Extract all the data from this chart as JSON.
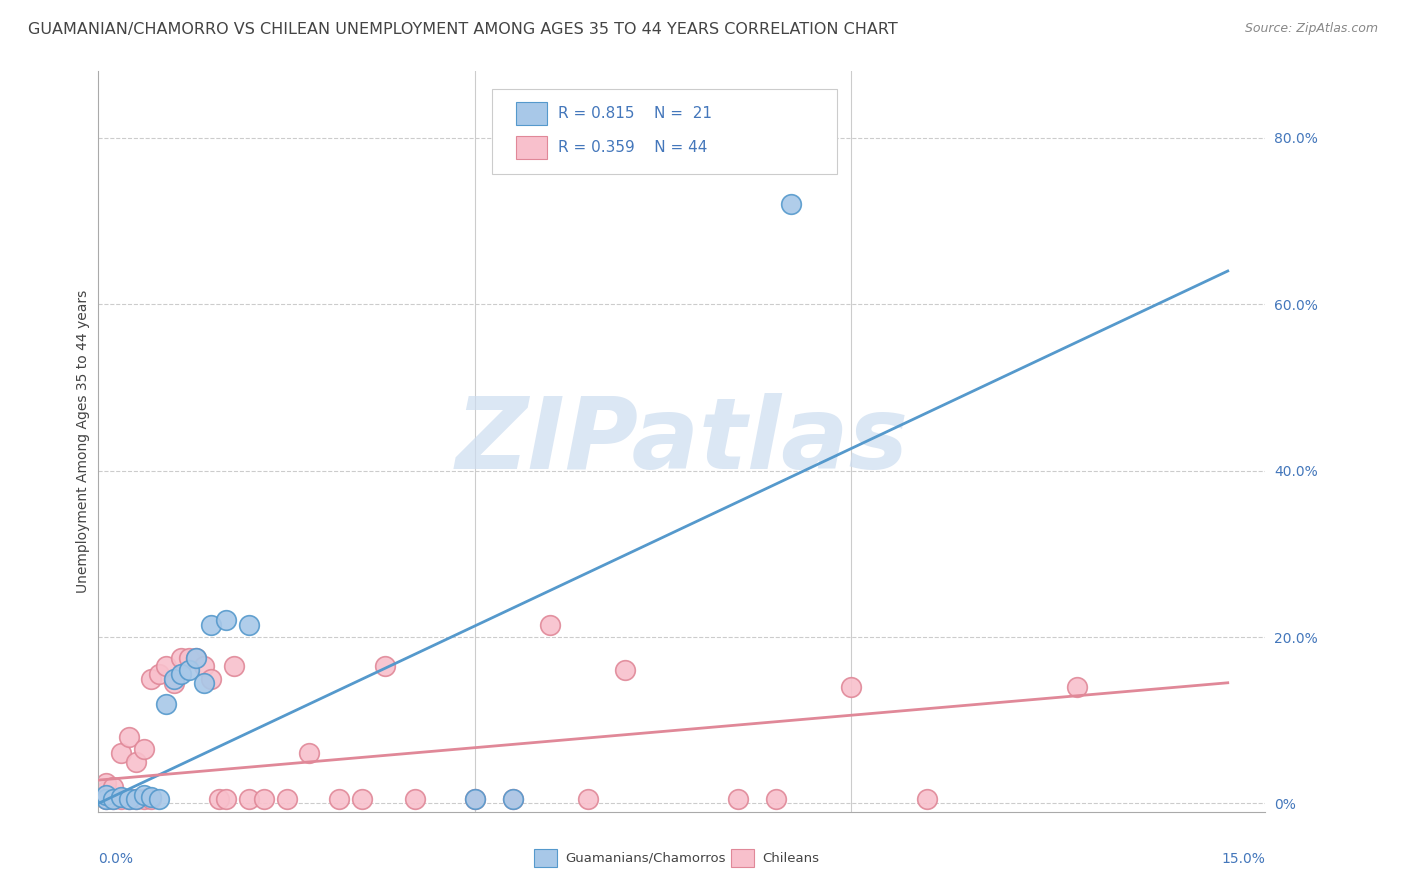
{
  "title": "GUAMANIAN/CHAMORRO VS CHILEAN UNEMPLOYMENT AMONG AGES 35 TO 44 YEARS CORRELATION CHART",
  "source": "Source: ZipAtlas.com",
  "ylabel": "Unemployment Among Ages 35 to 44 years",
  "legend_label1": "Guamanians/Chamorros",
  "legend_label2": "Chileans",
  "legend_R1": "R = 0.815",
  "legend_N1": "N =  21",
  "legend_R2": "R = 0.359",
  "legend_N2": "N = 44",
  "color_blue_face": "#a8c8e8",
  "color_blue_edge": "#5599cc",
  "color_pink_face": "#f8c0cc",
  "color_pink_edge": "#e08898",
  "color_blue_line": "#5599cc",
  "color_pink_line": "#e08898",
  "color_text_blue": "#4477bb",
  "color_text_dark": "#444444",
  "color_grid": "#cccccc",
  "bg_color": "#ffffff",
  "blue_scatter_x": [
    0.001,
    0.001,
    0.002,
    0.003,
    0.004,
    0.005,
    0.006,
    0.007,
    0.008,
    0.009,
    0.01,
    0.011,
    0.012,
    0.013,
    0.014,
    0.015,
    0.017,
    0.02,
    0.05,
    0.055,
    0.092
  ],
  "blue_scatter_y": [
    0.005,
    0.01,
    0.005,
    0.008,
    0.005,
    0.005,
    0.01,
    0.008,
    0.005,
    0.12,
    0.15,
    0.155,
    0.16,
    0.175,
    0.145,
    0.215,
    0.22,
    0.215,
    0.005,
    0.005,
    0.72
  ],
  "pink_scatter_x": [
    0.001,
    0.001,
    0.001,
    0.002,
    0.002,
    0.003,
    0.003,
    0.004,
    0.004,
    0.005,
    0.005,
    0.006,
    0.006,
    0.007,
    0.007,
    0.008,
    0.009,
    0.01,
    0.011,
    0.012,
    0.013,
    0.014,
    0.015,
    0.016,
    0.017,
    0.018,
    0.02,
    0.022,
    0.025,
    0.028,
    0.032,
    0.035,
    0.038,
    0.042,
    0.05,
    0.055,
    0.06,
    0.065,
    0.07,
    0.085,
    0.09,
    0.1,
    0.11,
    0.13
  ],
  "pink_scatter_y": [
    0.005,
    0.015,
    0.025,
    0.005,
    0.02,
    0.005,
    0.06,
    0.005,
    0.08,
    0.005,
    0.05,
    0.005,
    0.065,
    0.005,
    0.15,
    0.155,
    0.165,
    0.145,
    0.175,
    0.175,
    0.175,
    0.165,
    0.15,
    0.005,
    0.005,
    0.165,
    0.005,
    0.005,
    0.005,
    0.06,
    0.005,
    0.005,
    0.165,
    0.005,
    0.005,
    0.005,
    0.215,
    0.005,
    0.16,
    0.005,
    0.005,
    0.14,
    0.005,
    0.14
  ],
  "blue_line_x": [
    0.0,
    0.15
  ],
  "blue_line_y": [
    0.0,
    0.64
  ],
  "pink_line_x": [
    0.0,
    0.15
  ],
  "pink_line_y": [
    0.028,
    0.145
  ],
  "xlim": [
    0.0,
    0.155
  ],
  "ylim": [
    -0.01,
    0.88
  ],
  "right_yticks": [
    0.0,
    0.2,
    0.4,
    0.6,
    0.8
  ],
  "right_yticklabels": [
    "0%",
    "20.0%",
    "40.0%",
    "60.0%",
    "80.0%"
  ],
  "xtick_positions": [
    0.0,
    0.05,
    0.1,
    0.15
  ],
  "title_fontsize": 11.5,
  "source_fontsize": 9,
  "axis_label_fontsize": 10,
  "tick_fontsize": 10,
  "legend_fontsize": 11,
  "watermark_text": "ZIPatlas",
  "watermark_color": "#ccddf0",
  "watermark_fontsize": 72
}
